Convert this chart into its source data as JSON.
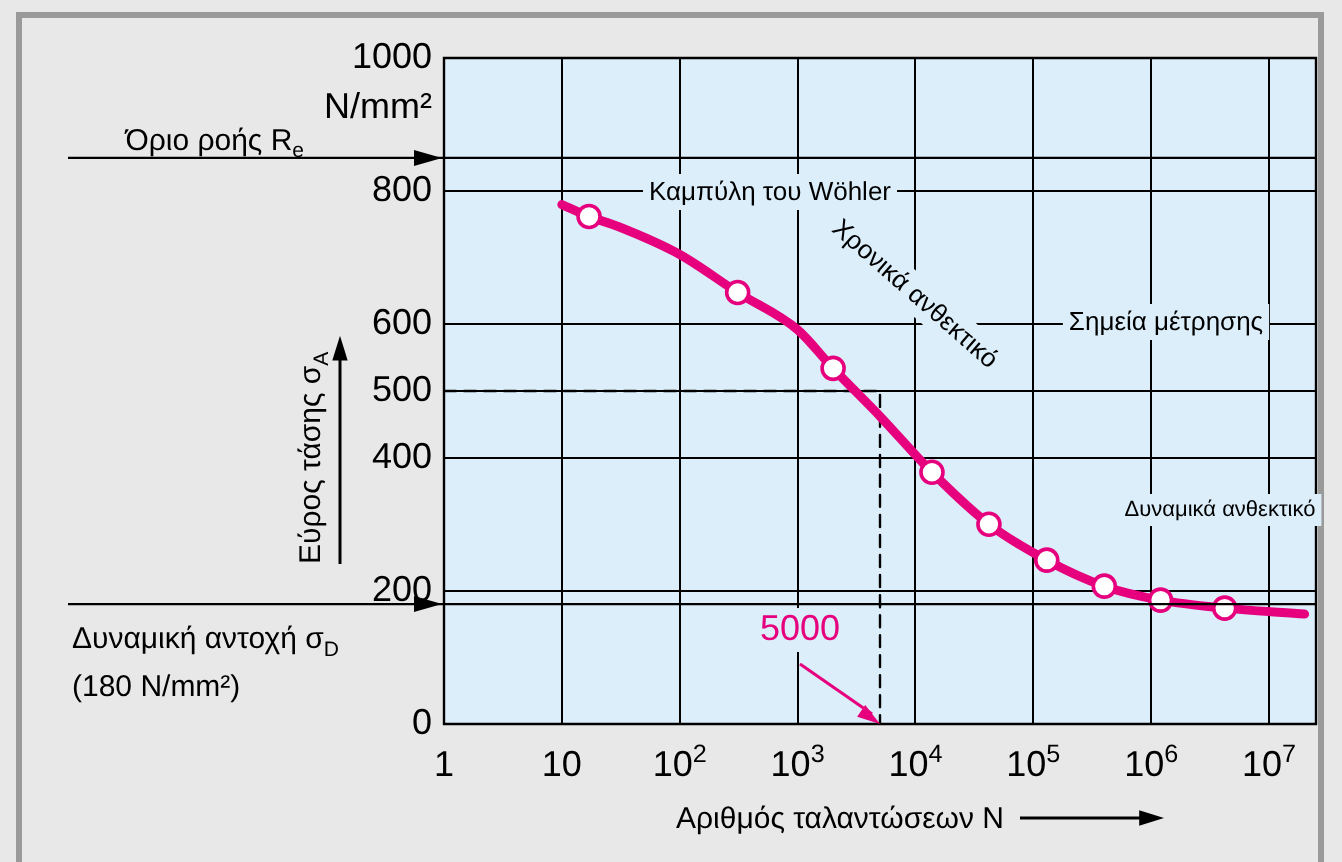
{
  "chart_data": {
    "type": "line",
    "xlabel": "Αριθμός ταλαντώσεων N",
    "ylabel": "Εύρος τάσης σ$_{A}$",
    "log": "x",
    "grid": true,
    "legend": false,
    "xlim": [
      1,
      25000000
    ],
    "xticks": [
      1,
      10,
      {
        "value": 100,
        "label": "10$^{2}$"
      },
      {
        "value": 1000,
        "label": "10$^{3}$"
      },
      {
        "value": 10000,
        "label": "10$^{4}$"
      },
      {
        "value": 100000,
        "label": "10$^{5}$"
      },
      {
        "value": 1000000,
        "label": "10$^{6}$"
      },
      {
        "value": 10000000,
        "label": "10$^{7}$"
      }
    ],
    "ylim": [
      0,
      1000
    ],
    "yticks": [
      0,
      200,
      400,
      500,
      600,
      800,
      1000
    ],
    "series": [
      {
        "color": "#e6007e",
        "marker": "none",
        "line_style": "solid",
        "x": [
          10,
          17,
          30,
          100,
          310,
          1000,
          2000,
          5000,
          13800,
          42000,
          130000,
          400000,
          1200000,
          4200000,
          20000000
        ],
        "values": [
          780,
          762,
          747,
          705,
          648,
          592,
          534,
          462,
          378,
          300,
          246,
          207,
          186,
          174,
          165
        ]
      },
      {
        "type": "scatter",
        "color": "#e6007e",
        "marker": "circle",
        "x": [
          17,
          310,
          2000,
          13800,
          42000,
          130000,
          400000,
          1200000,
          4200000
        ],
        "values": [
          762,
          648,
          534,
          378,
          300,
          246,
          207,
          186,
          174
        ]
      },
      {
        "type": "line",
        "color": "#000000",
        "marker": "none",
        "line_style": "dashed",
        "x": [
          1,
          5000,
          5000
        ],
        "values": [
          500,
          500,
          0
        ]
      }
    ],
    "ref_lines": [
      {
        "axis": "y",
        "value": 850,
        "label": "Όριο ροής R$_{e}$",
        "color": "#000000"
      },
      {
        "axis": "y",
        "value": 180,
        "label": "Δυναμική αντοχή σ$_{D}$ (180 N/mm²)",
        "color": "#000000"
      }
    ],
    "annotations": [
      "N/mm²",
      "Καμπύλη του Wöhler",
      "Χρονικά ανθεκτικό",
      "Σημεία μέτρησης",
      "Δυναμικά ανθεκτικό",
      {
        "text": "5000",
        "x": 5000,
        "y": 0
      }
    ]
  }
}
